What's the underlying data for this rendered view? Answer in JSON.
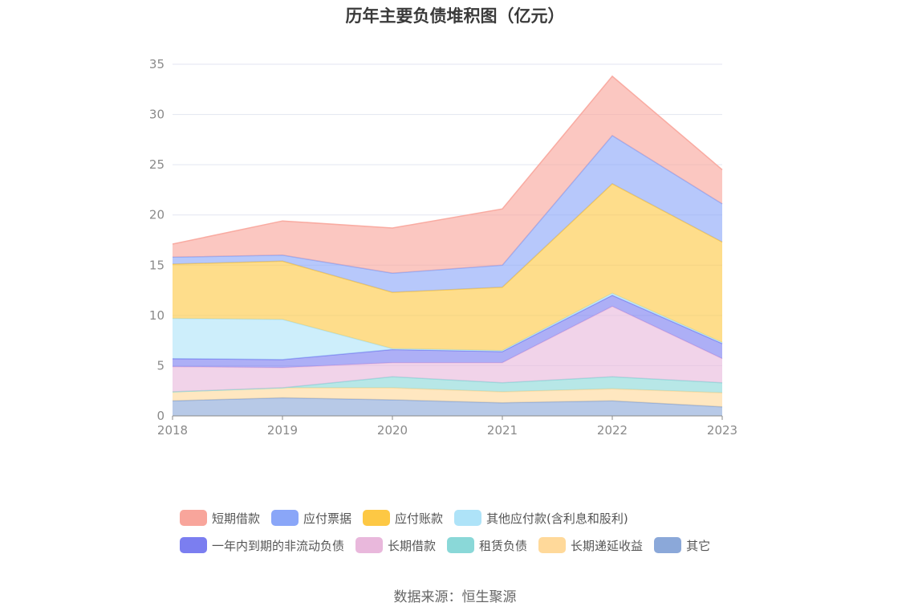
{
  "chart_data": {
    "type": "area",
    "title": "历年主要负债堆积图（亿元）",
    "xlabel": "",
    "ylabel": "",
    "categories": [
      "2018",
      "2019",
      "2020",
      "2021",
      "2022",
      "2023"
    ],
    "ylim": [
      0,
      35
    ],
    "yticks": [
      0,
      5,
      10,
      15,
      20,
      25,
      30,
      35
    ],
    "stacked": true,
    "grid": true,
    "legend_position": "bottom",
    "series": [
      {
        "name": "其它",
        "color": "#8ba8d9",
        "values": [
          1.5,
          1.8,
          1.6,
          1.3,
          1.5,
          0.9
        ]
      },
      {
        "name": "长期递延收益",
        "color": "#ffd99a",
        "values": [
          0.9,
          1.0,
          1.2,
          1.1,
          1.2,
          1.4
        ]
      },
      {
        "name": "租赁负债",
        "color": "#8ad8d8",
        "values": [
          0.0,
          0.0,
          1.1,
          0.9,
          1.2,
          1.0
        ]
      },
      {
        "name": "长期借款",
        "color": "#e9b8dc",
        "values": [
          2.5,
          2.0,
          1.4,
          2.0,
          7.0,
          2.4
        ]
      },
      {
        "name": "一年内到期的非流动负债",
        "color": "#7b7ef0",
        "values": [
          0.8,
          0.8,
          1.3,
          1.1,
          1.1,
          1.5
        ]
      },
      {
        "name": "其他应付款(含利息和股利)",
        "color": "#aee3f8",
        "values": [
          4.0,
          4.0,
          0.1,
          0.1,
          0.2,
          0.1
        ]
      },
      {
        "name": "应付账款",
        "color": "#fdc844",
        "values": [
          5.4,
          5.8,
          5.6,
          6.3,
          10.9,
          10.0
        ]
      },
      {
        "name": "应付票据",
        "color": "#8aa6f8",
        "values": [
          0.7,
          0.6,
          1.9,
          2.2,
          4.8,
          3.8
        ]
      },
      {
        "name": "短期借款",
        "color": "#f8a59b",
        "values": [
          1.3,
          3.4,
          4.5,
          5.6,
          5.9,
          3.4
        ]
      }
    ]
  },
  "legend_rows": [
    [
      "短期借款",
      "应付票据",
      "应付账款",
      "其他应付款(含利息和股利)"
    ],
    [
      "一年内到期的非流动负债",
      "长期借款",
      "租赁负债",
      "长期递延收益",
      "其它"
    ]
  ],
  "source": "数据来源：恒生聚源"
}
